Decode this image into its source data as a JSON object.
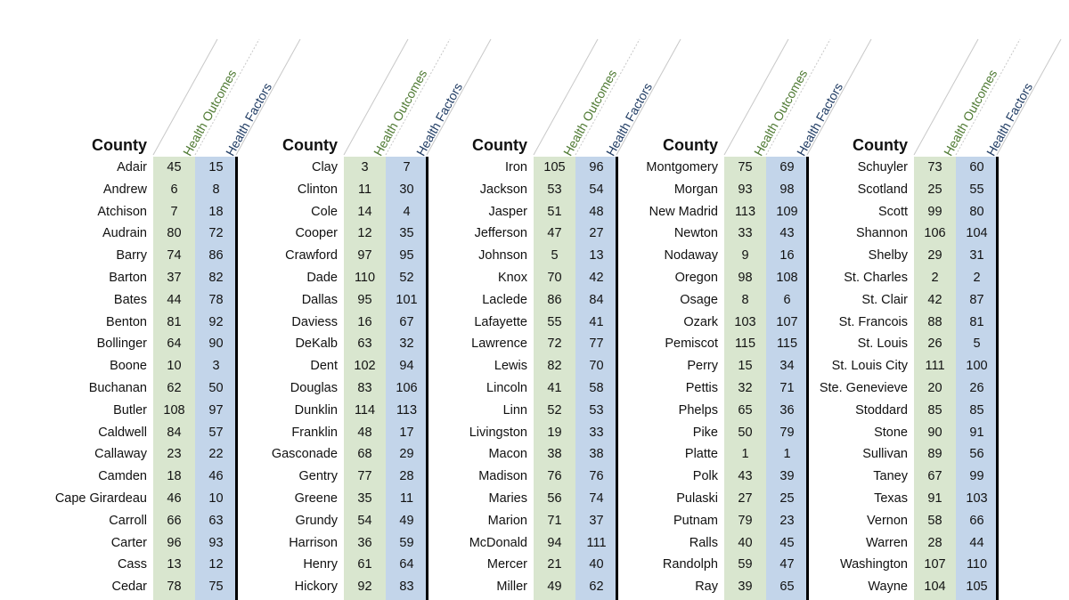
{
  "headers": {
    "county": "County",
    "outcomes": "Health Outcomes",
    "factors": "Health Factors"
  },
  "colors": {
    "outcomes_fill": "#d9e6cf",
    "factors_fill": "#c3d5ea",
    "outcomes_text": "#4f7a33",
    "factors_text": "#1f3b63"
  },
  "blocks": [
    {
      "rows": [
        [
          "Adair",
          "45",
          "15"
        ],
        [
          "Andrew",
          "6",
          "8"
        ],
        [
          "Atchison",
          "7",
          "18"
        ],
        [
          "Audrain",
          "80",
          "72"
        ],
        [
          "Barry",
          "74",
          "86"
        ],
        [
          "Barton",
          "37",
          "82"
        ],
        [
          "Bates",
          "44",
          "78"
        ],
        [
          "Benton",
          "81",
          "92"
        ],
        [
          "Bollinger",
          "64",
          "90"
        ],
        [
          "Boone",
          "10",
          "3"
        ],
        [
          "Buchanan",
          "62",
          "50"
        ],
        [
          "Butler",
          "108",
          "97"
        ],
        [
          "Caldwell",
          "84",
          "57"
        ],
        [
          "Callaway",
          "23",
          "22"
        ],
        [
          "Camden",
          "18",
          "46"
        ],
        [
          "Cape Girardeau",
          "46",
          "10"
        ],
        [
          "Carroll",
          "66",
          "63"
        ],
        [
          "Carter",
          "96",
          "93"
        ],
        [
          "Cass",
          "13",
          "12"
        ],
        [
          "Cedar",
          "78",
          "75"
        ]
      ]
    },
    {
      "rows": [
        [
          "Clay",
          "3",
          "7"
        ],
        [
          "Clinton",
          "11",
          "30"
        ],
        [
          "Cole",
          "14",
          "4"
        ],
        [
          "Cooper",
          "12",
          "35"
        ],
        [
          "Crawford",
          "97",
          "95"
        ],
        [
          "Dade",
          "110",
          "52"
        ],
        [
          "Dallas",
          "95",
          "101"
        ],
        [
          "Daviess",
          "16",
          "67"
        ],
        [
          "DeKalb",
          "63",
          "32"
        ],
        [
          "Dent",
          "102",
          "94"
        ],
        [
          "Douglas",
          "83",
          "106"
        ],
        [
          "Dunklin",
          "114",
          "113"
        ],
        [
          "Franklin",
          "48",
          "17"
        ],
        [
          "Gasconade",
          "68",
          "29"
        ],
        [
          "Gentry",
          "77",
          "28"
        ],
        [
          "Greene",
          "35",
          "11"
        ],
        [
          "Grundy",
          "54",
          "49"
        ],
        [
          "Harrison",
          "36",
          "59"
        ],
        [
          "Henry",
          "61",
          "64"
        ],
        [
          "Hickory",
          "92",
          "83"
        ]
      ]
    },
    {
      "rows": [
        [
          "Iron",
          "105",
          "96"
        ],
        [
          "Jackson",
          "53",
          "54"
        ],
        [
          "Jasper",
          "51",
          "48"
        ],
        [
          "Jefferson",
          "47",
          "27"
        ],
        [
          "Johnson",
          "5",
          "13"
        ],
        [
          "Knox",
          "70",
          "42"
        ],
        [
          "Laclede",
          "86",
          "84"
        ],
        [
          "Lafayette",
          "55",
          "41"
        ],
        [
          "Lawrence",
          "72",
          "77"
        ],
        [
          "Lewis",
          "82",
          "70"
        ],
        [
          "Lincoln",
          "41",
          "58"
        ],
        [
          "Linn",
          "52",
          "53"
        ],
        [
          "Livingston",
          "19",
          "33"
        ],
        [
          "Macon",
          "38",
          "38"
        ],
        [
          "Madison",
          "76",
          "76"
        ],
        [
          "Maries",
          "56",
          "74"
        ],
        [
          "Marion",
          "71",
          "37"
        ],
        [
          "McDonald",
          "94",
          "111"
        ],
        [
          "Mercer",
          "21",
          "40"
        ],
        [
          "Miller",
          "49",
          "62"
        ]
      ]
    },
    {
      "rows": [
        [
          "Montgomery",
          "75",
          "69"
        ],
        [
          "Morgan",
          "93",
          "98"
        ],
        [
          "New Madrid",
          "113",
          "109"
        ],
        [
          "Newton",
          "33",
          "43"
        ],
        [
          "Nodaway",
          "9",
          "16"
        ],
        [
          "Oregon",
          "98",
          "108"
        ],
        [
          "Osage",
          "8",
          "6"
        ],
        [
          "Ozark",
          "103",
          "107"
        ],
        [
          "Pemiscot",
          "115",
          "115"
        ],
        [
          "Perry",
          "15",
          "34"
        ],
        [
          "Pettis",
          "32",
          "71"
        ],
        [
          "Phelps",
          "65",
          "36"
        ],
        [
          "Pike",
          "50",
          "79"
        ],
        [
          "Platte",
          "1",
          "1"
        ],
        [
          "Polk",
          "43",
          "39"
        ],
        [
          "Pulaski",
          "27",
          "25"
        ],
        [
          "Putnam",
          "79",
          "23"
        ],
        [
          "Ralls",
          "40",
          "45"
        ],
        [
          "Randolph",
          "59",
          "47"
        ],
        [
          "Ray",
          "39",
          "65"
        ]
      ]
    },
    {
      "rows": [
        [
          "Schuyler",
          "73",
          "60"
        ],
        [
          "Scotland",
          "25",
          "55"
        ],
        [
          "Scott",
          "99",
          "80"
        ],
        [
          "Shannon",
          "106",
          "104"
        ],
        [
          "Shelby",
          "29",
          "31"
        ],
        [
          "St. Charles",
          "2",
          "2"
        ],
        [
          "St. Clair",
          "42",
          "87"
        ],
        [
          "St. Francois",
          "88",
          "81"
        ],
        [
          "St. Louis",
          "26",
          "5"
        ],
        [
          "St. Louis City",
          "111",
          "100"
        ],
        [
          "Ste. Genevieve",
          "20",
          "26"
        ],
        [
          "Stoddard",
          "85",
          "85"
        ],
        [
          "Stone",
          "90",
          "91"
        ],
        [
          "Sullivan",
          "89",
          "56"
        ],
        [
          "Taney",
          "67",
          "99"
        ],
        [
          "Texas",
          "91",
          "103"
        ],
        [
          "Vernon",
          "58",
          "66"
        ],
        [
          "Warren",
          "28",
          "44"
        ],
        [
          "Washington",
          "107",
          "110"
        ],
        [
          "Wayne",
          "104",
          "105"
        ]
      ]
    }
  ]
}
